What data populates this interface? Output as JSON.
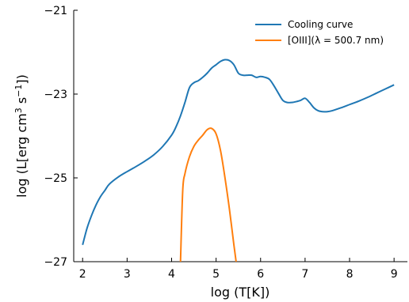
{
  "chart_data": {
    "type": "line",
    "xlabel": "log (T[K])",
    "ylabel_parts": [
      "log (L[erg cm",
      "3",
      " s",
      "−1",
      "])"
    ],
    "xlim": [
      1.8,
      9.3
    ],
    "ylim": [
      -27,
      -21
    ],
    "xticks": [
      2,
      3,
      4,
      5,
      6,
      7,
      8,
      9
    ],
    "yticks": [
      -27,
      -25,
      -23,
      -21
    ],
    "xtick_labels": [
      "2",
      "3",
      "4",
      "5",
      "6",
      "7",
      "8",
      "9"
    ],
    "ytick_labels": [
      "−27",
      "−25",
      "−23",
      "−21"
    ],
    "grid": false,
    "legend_position": "top-right",
    "series": [
      {
        "name": "Cooling curve",
        "color": "#1f77b4",
        "x": [
          2.0,
          2.1,
          2.2,
          2.3,
          2.4,
          2.5,
          2.6,
          2.8,
          3.0,
          3.2,
          3.4,
          3.6,
          3.8,
          4.0,
          4.1,
          4.2,
          4.3,
          4.4,
          4.5,
          4.6,
          4.7,
          4.8,
          4.9,
          5.0,
          5.1,
          5.2,
          5.3,
          5.4,
          5.5,
          5.6,
          5.7,
          5.8,
          5.9,
          6.0,
          6.1,
          6.2,
          6.3,
          6.4,
          6.5,
          6.6,
          6.7,
          6.8,
          6.9,
          7.0,
          7.1,
          7.2,
          7.3,
          7.4,
          7.5,
          7.6,
          7.8,
          8.0,
          8.2,
          8.4,
          8.6,
          8.8,
          9.0
        ],
        "y": [
          -26.6,
          -26.2,
          -25.9,
          -25.65,
          -25.45,
          -25.3,
          -25.15,
          -24.98,
          -24.85,
          -24.73,
          -24.6,
          -24.45,
          -24.25,
          -23.98,
          -23.78,
          -23.52,
          -23.2,
          -22.85,
          -22.73,
          -22.68,
          -22.6,
          -22.5,
          -22.38,
          -22.3,
          -22.22,
          -22.18,
          -22.2,
          -22.3,
          -22.5,
          -22.55,
          -22.55,
          -22.55,
          -22.6,
          -22.58,
          -22.6,
          -22.65,
          -22.8,
          -22.98,
          -23.15,
          -23.2,
          -23.2,
          -23.18,
          -23.15,
          -23.1,
          -23.2,
          -23.33,
          -23.4,
          -23.42,
          -23.42,
          -23.4,
          -23.33,
          -23.25,
          -23.17,
          -23.08,
          -22.98,
          -22.88,
          -22.78
        ]
      },
      {
        "name": "[OIII](λ = 500.7 nm)",
        "color": "#ff7f0e",
        "x": [
          4.2,
          4.25,
          4.3,
          4.4,
          4.5,
          4.6,
          4.7,
          4.8,
          4.9,
          5.0,
          5.1,
          5.2,
          5.3,
          5.4,
          5.45
        ],
        "y": [
          -27,
          -25.3,
          -24.9,
          -24.5,
          -24.25,
          -24.1,
          -23.98,
          -23.85,
          -23.82,
          -23.95,
          -24.35,
          -25.0,
          -25.75,
          -26.6,
          -27
        ]
      }
    ]
  }
}
